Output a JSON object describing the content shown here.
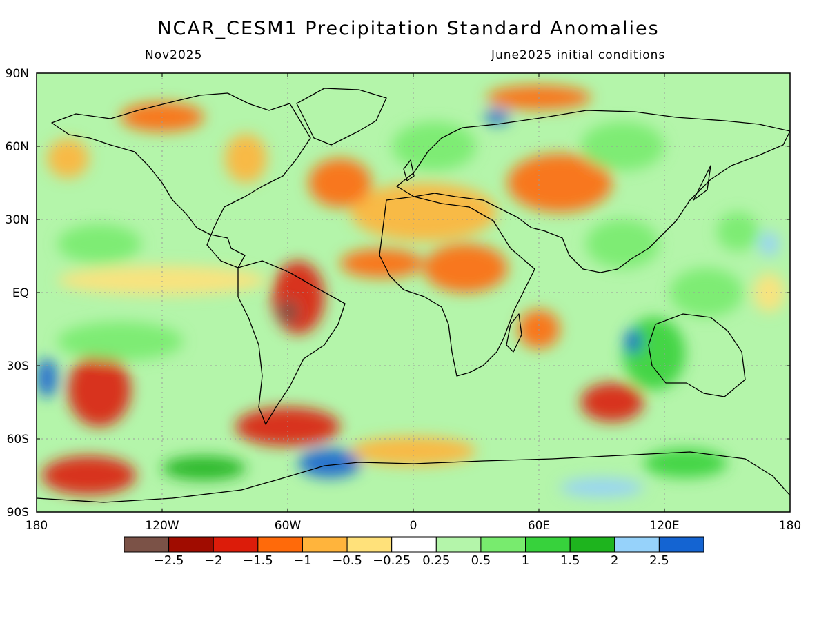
{
  "title": "NCAR_CESM1 Precipitation Standard Anomalies",
  "subtitle_left": "Nov2025",
  "subtitle_right": "June2025 initial conditions",
  "lat_ticks": [
    {
      "label": "90N",
      "value": 90
    },
    {
      "label": "60N",
      "value": 60
    },
    {
      "label": "30N",
      "value": 30
    },
    {
      "label": "EQ",
      "value": 0
    },
    {
      "label": "30S",
      "value": -30
    },
    {
      "label": "60S",
      "value": -60
    },
    {
      "label": "90S",
      "value": -90
    }
  ],
  "lon_ticks": [
    {
      "label": "180",
      "value": -180
    },
    {
      "label": "120W",
      "value": -120
    },
    {
      "label": "60W",
      "value": -60
    },
    {
      "label": "0",
      "value": 0
    },
    {
      "label": "60E",
      "value": 60
    },
    {
      "label": "120E",
      "value": 120
    },
    {
      "label": "180",
      "value": 180
    }
  ],
  "colorbar": {
    "colors": [
      "#7b5247",
      "#a00c00",
      "#dc1c0a",
      "#ff6a0a",
      "#ffb43c",
      "#ffe17a",
      "#ffffff",
      "#b4f5aa",
      "#78eb6e",
      "#37d23c",
      "#1eb41e",
      "#96d2fa",
      "#1464d2"
    ],
    "labels": [
      "-2.5",
      "-2",
      "-1.5",
      "-1",
      "-0.5",
      "-0.25",
      "0.25",
      "0.5",
      "1",
      "1.5",
      "2",
      "2.5"
    ]
  },
  "anomaly_regions": [
    {
      "lon": 5,
      "lat": 33,
      "w": 70,
      "h": 12,
      "level": -0.6
    },
    {
      "lon": -15,
      "lat": 12,
      "w": 40,
      "h": 6,
      "level": -1.3
    },
    {
      "lon": 25,
      "lat": 10,
      "w": 40,
      "h": 10,
      "level": -1.2
    },
    {
      "lon": -55,
      "lat": -2,
      "w": 25,
      "h": 15,
      "level": -1.6
    },
    {
      "lon": -60,
      "lat": -8,
      "w": 10,
      "h": 5,
      "level": -2.7
    },
    {
      "lon": -120,
      "lat": 5,
      "w": 100,
      "h": 6,
      "level": -0.3
    },
    {
      "lon": -150,
      "lat": -40,
      "w": 30,
      "h": 15,
      "level": -1.6
    },
    {
      "lon": -60,
      "lat": -55,
      "w": 50,
      "h": 8,
      "level": -1.8
    },
    {
      "lon": -155,
      "lat": -75,
      "w": 45,
      "h": 8,
      "level": -1.6
    },
    {
      "lon": 95,
      "lat": -45,
      "w": 30,
      "h": 8,
      "level": -1.7
    },
    {
      "lon": 60,
      "lat": -15,
      "w": 20,
      "h": 8,
      "level": -1.4
    },
    {
      "lon": 70,
      "lat": 45,
      "w": 50,
      "h": 12,
      "level": -1.1
    },
    {
      "lon": 60,
      "lat": 80,
      "w": 50,
      "h": 5,
      "level": -1.3
    },
    {
      "lon": -120,
      "lat": 72,
      "w": 40,
      "h": 6,
      "level": -1.4
    },
    {
      "lon": -150,
      "lat": 20,
      "w": 40,
      "h": 8,
      "level": 0.7
    },
    {
      "lon": -140,
      "lat": -20,
      "w": 60,
      "h": 8,
      "level": 0.8
    },
    {
      "lon": -175,
      "lat": -35,
      "w": 10,
      "h": 8,
      "level": 2.6
    },
    {
      "lon": 10,
      "lat": 60,
      "w": 40,
      "h": 10,
      "level": 0.9
    },
    {
      "lon": 40,
      "lat": 72,
      "w": 12,
      "h": 3,
      "level": 2.6
    },
    {
      "lon": 115,
      "lat": -25,
      "w": 30,
      "h": 15,
      "level": 1.3
    },
    {
      "lon": 105,
      "lat": -20,
      "w": 8,
      "h": 5,
      "level": 2.6
    },
    {
      "lon": 100,
      "lat": 20,
      "w": 35,
      "h": 10,
      "level": 0.8
    },
    {
      "lon": 140,
      "lat": 0,
      "w": 35,
      "h": 10,
      "level": 0.6
    },
    {
      "lon": 170,
      "lat": 0,
      "w": 15,
      "h": 8,
      "level": -0.3
    },
    {
      "lon": -40,
      "lat": -70,
      "w": 30,
      "h": 6,
      "level": 2.6
    },
    {
      "lon": 90,
      "lat": -80,
      "w": 40,
      "h": 4,
      "level": 2.1
    },
    {
      "lon": -100,
      "lat": -72,
      "w": 40,
      "h": 5,
      "level": 1.6
    },
    {
      "lon": 0,
      "lat": -65,
      "w": 60,
      "h": 6,
      "level": -0.7
    },
    {
      "lon": 130,
      "lat": -70,
      "w": 40,
      "h": 6,
      "level": 1.2
    },
    {
      "lon": -35,
      "lat": 45,
      "w": 30,
      "h": 10,
      "level": -1.0
    },
    {
      "lon": -80,
      "lat": 55,
      "w": 20,
      "h": 10,
      "level": -0.6
    },
    {
      "lon": 100,
      "lat": 60,
      "w": 40,
      "h": 10,
      "level": 0.9
    },
    {
      "lon": -165,
      "lat": 55,
      "w": 20,
      "h": 8,
      "level": -0.8
    },
    {
      "lon": 155,
      "lat": 25,
      "w": 20,
      "h": 8,
      "level": 0.9
    },
    {
      "lon": 170,
      "lat": 20,
      "w": 10,
      "h": 5,
      "level": 2.4
    }
  ]
}
